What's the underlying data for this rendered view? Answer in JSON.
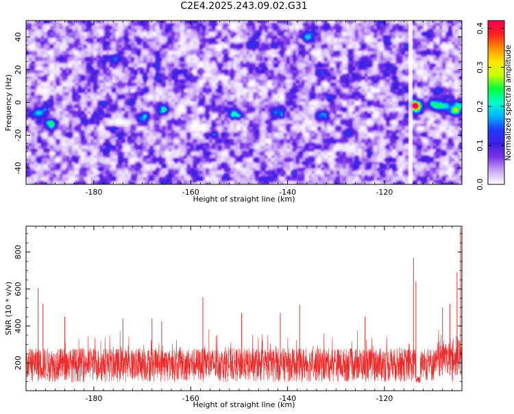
{
  "title": "C2E4.2025.243.09.02.G31",
  "chart_data": [
    {
      "type": "heatmap",
      "name": "spectrogram",
      "xlabel": "Height of straight line (km)",
      "ylabel": "Frequency (Hz)",
      "xlim": [
        -194,
        -104
      ],
      "ylim": [
        -50,
        50
      ],
      "xticks": [
        -180,
        -160,
        -140,
        -120
      ],
      "yticks": [
        -40,
        -20,
        0,
        20,
        40
      ],
      "colorbar": {
        "label": "Normalized spectral amplitude",
        "range": [
          0,
          0.42
        ],
        "ticks": [
          "0.0",
          "0.1",
          "0.2",
          "0.3",
          "0.4"
        ],
        "tick_values": [
          0.0,
          0.1,
          0.2,
          0.3,
          0.4
        ],
        "colors": [
          "#ffffff",
          "#c9a6f5",
          "#7a33e8",
          "#3a1fe0",
          "#1f3cff",
          "#00b4ff",
          "#00ffc8",
          "#00ff3c",
          "#c8ff00",
          "#ffe600",
          "#ff8c00",
          "#ff2020",
          "#ff0050"
        ]
      },
      "background_level": 0.07,
      "hotspots": [
        {
          "x": -191.5,
          "y": -6,
          "value": 0.19
        },
        {
          "x": -189,
          "y": -13,
          "value": 0.17
        },
        {
          "x": -151,
          "y": -6,
          "value": 0.15
        },
        {
          "x": -113.8,
          "y": -1.5,
          "value": 0.41
        },
        {
          "x": -110,
          "y": -1,
          "value": 0.16
        },
        {
          "x": -108,
          "y": -2,
          "value": 0.17
        },
        {
          "x": -105.5,
          "y": -5,
          "value": 0.19
        },
        {
          "x": -104.5,
          "y": -1,
          "value": 0.16
        },
        {
          "x": -166,
          "y": -4,
          "value": 0.13
        },
        {
          "x": -170,
          "y": -9,
          "value": 0.11
        },
        {
          "x": -142.5,
          "y": -5,
          "value": 0.12
        },
        {
          "x": -133,
          "y": -7,
          "value": 0.11
        },
        {
          "x": -127.5,
          "y": -18,
          "value": 0.1
        },
        {
          "x": -136,
          "y": 41,
          "value": 0.11
        },
        {
          "x": -175,
          "y": 27,
          "value": 0.1
        }
      ],
      "gap_x": [
        -115.2,
        -114.4
      ]
    },
    {
      "type": "line",
      "name": "snr",
      "xlabel": "Height of straight line (km)",
      "ylabel": "SNR (10 * v/v)",
      "xlim": [
        -194,
        -104
      ],
      "ylim": [
        50,
        940
      ],
      "xticks": [
        -180,
        -160,
        -140,
        -120
      ],
      "yticks": [
        200,
        400,
        600,
        800
      ],
      "color": "#ee2b2b",
      "baseline_envelope": {
        "low": 95,
        "high": 280
      },
      "spikes": [
        {
          "x": -191.5,
          "y": 605
        },
        {
          "x": -190.5,
          "y": 520
        },
        {
          "x": -186,
          "y": 450
        },
        {
          "x": -174,
          "y": 440
        },
        {
          "x": -168,
          "y": 440
        },
        {
          "x": -166,
          "y": 425
        },
        {
          "x": -157.5,
          "y": 555
        },
        {
          "x": -149.5,
          "y": 470
        },
        {
          "x": -141.5,
          "y": 470
        },
        {
          "x": -137.5,
          "y": 515
        },
        {
          "x": -124,
          "y": 450
        },
        {
          "x": -114,
          "y": 770
        },
        {
          "x": -113.5,
          "y": 640
        },
        {
          "x": -108,
          "y": 500
        },
        {
          "x": -106.5,
          "y": 520
        },
        {
          "x": -105,
          "y": 690
        },
        {
          "x": -104.3,
          "y": 935
        }
      ],
      "dip": {
        "x_start": -113.5,
        "x_end": -112.5,
        "value": 90
      }
    }
  ]
}
